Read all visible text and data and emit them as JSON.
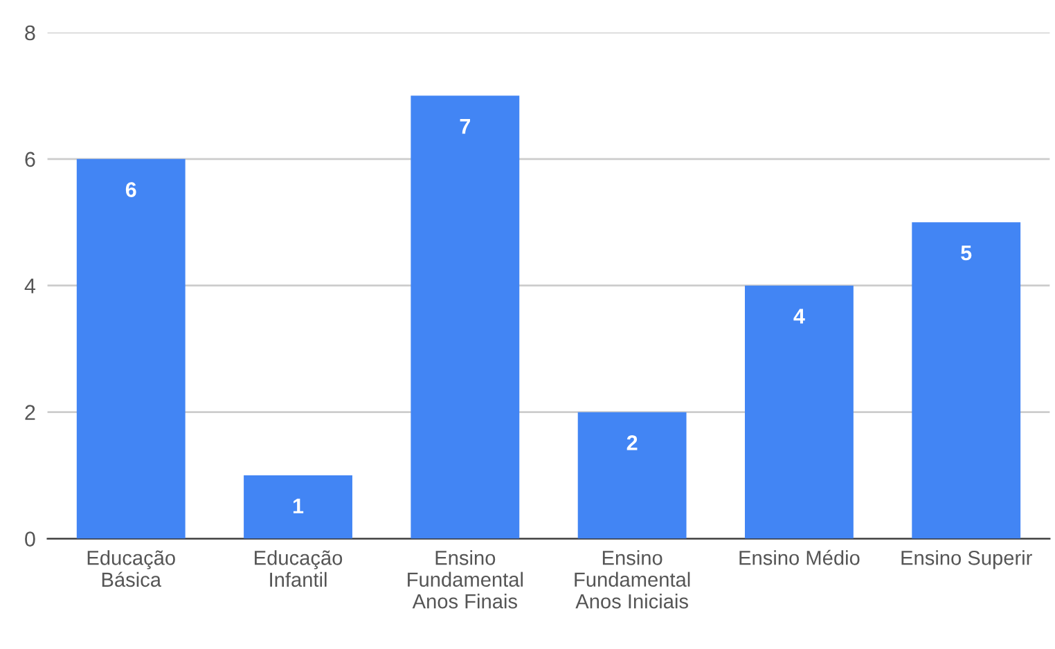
{
  "chart_data": {
    "type": "bar",
    "categories": [
      "Educação\nBásica",
      "Educação\nInfantil",
      "Ensino\nFundamental\nAnos Finais",
      "Ensino\nFundamental\nAnos Iniciais",
      "Ensino Médio",
      "Ensino Superir"
    ],
    "values": [
      6,
      1,
      7,
      2,
      4,
      5
    ],
    "color": "#4285f4",
    "ylim": [
      0,
      8
    ],
    "yticks": [
      0,
      2,
      4,
      6,
      8
    ],
    "grid": "y",
    "data_labels": true
  }
}
